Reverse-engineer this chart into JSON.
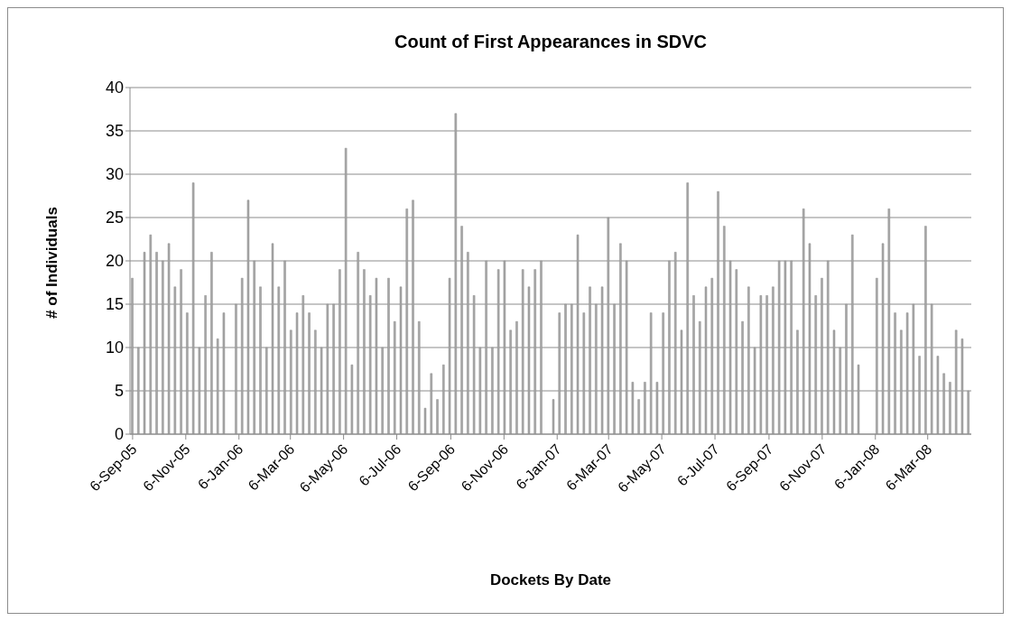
{
  "chart_data": {
    "type": "bar",
    "title": "Count of First Appearances in SDVC",
    "xlabel": "Dockets By Date",
    "ylabel": "# of Individuals",
    "x": [
      "2005-09-06",
      "2005-09-13",
      "2005-09-20",
      "2005-09-27",
      "2005-10-04",
      "2005-10-11",
      "2005-10-18",
      "2005-10-25",
      "2005-11-01",
      "2005-11-08",
      "2005-11-15",
      "2005-11-22",
      "2005-11-29",
      "2005-12-06",
      "2005-12-13",
      "2005-12-20",
      "2006-01-03",
      "2006-01-10",
      "2006-01-17",
      "2006-01-24",
      "2006-01-31",
      "2006-02-07",
      "2006-02-14",
      "2006-02-21",
      "2006-02-28",
      "2006-03-07",
      "2006-03-14",
      "2006-03-21",
      "2006-03-28",
      "2006-04-04",
      "2006-04-11",
      "2006-04-18",
      "2006-04-25",
      "2006-05-02",
      "2006-05-09",
      "2006-05-16",
      "2006-05-23",
      "2006-05-30",
      "2006-06-06",
      "2006-06-13",
      "2006-06-20",
      "2006-06-27",
      "2006-07-04",
      "2006-07-11",
      "2006-07-18",
      "2006-07-25",
      "2006-08-01",
      "2006-08-08",
      "2006-08-15",
      "2006-08-22",
      "2006-08-29",
      "2006-09-05",
      "2006-09-12",
      "2006-09-19",
      "2006-09-26",
      "2006-10-03",
      "2006-10-10",
      "2006-10-17",
      "2006-10-24",
      "2006-10-31",
      "2006-11-07",
      "2006-11-14",
      "2006-11-21",
      "2006-11-28",
      "2006-12-05",
      "2006-12-12",
      "2006-12-19",
      "2007-01-02",
      "2007-01-09",
      "2007-01-16",
      "2007-01-23",
      "2007-01-30",
      "2007-02-06",
      "2007-02-13",
      "2007-02-20",
      "2007-02-27",
      "2007-03-06",
      "2007-03-13",
      "2007-03-20",
      "2007-03-27",
      "2007-04-03",
      "2007-04-10",
      "2007-04-17",
      "2007-04-24",
      "2007-05-01",
      "2007-05-08",
      "2007-05-15",
      "2007-05-22",
      "2007-05-29",
      "2007-06-05",
      "2007-06-12",
      "2007-06-19",
      "2007-06-26",
      "2007-07-03",
      "2007-07-10",
      "2007-07-17",
      "2007-07-24",
      "2007-07-31",
      "2007-08-07",
      "2007-08-14",
      "2007-08-21",
      "2007-08-28",
      "2007-09-04",
      "2007-09-11",
      "2007-09-18",
      "2007-09-25",
      "2007-10-02",
      "2007-10-09",
      "2007-10-16",
      "2007-10-23",
      "2007-10-30",
      "2007-11-06",
      "2007-11-13",
      "2007-11-20",
      "2007-11-27",
      "2007-12-04",
      "2007-12-11",
      "2007-12-18",
      "2008-01-08",
      "2008-01-15",
      "2008-01-22",
      "2008-01-29",
      "2008-02-05",
      "2008-02-12",
      "2008-02-19",
      "2008-02-26",
      "2008-03-04",
      "2008-03-11",
      "2008-03-18",
      "2008-03-25",
      "2008-04-01",
      "2008-04-08",
      "2008-04-15",
      "2008-04-22"
    ],
    "values": [
      18,
      10,
      21,
      23,
      21,
      20,
      22,
      17,
      19,
      14,
      29,
      10,
      16,
      21,
      11,
      14,
      15,
      18,
      27,
      20,
      17,
      10,
      22,
      17,
      20,
      12,
      14,
      16,
      14,
      12,
      10,
      15,
      15,
      19,
      33,
      8,
      21,
      19,
      16,
      18,
      10,
      18,
      13,
      17,
      26,
      27,
      13,
      3,
      7,
      4,
      8,
      18,
      37,
      24,
      21,
      16,
      10,
      20,
      10,
      19,
      20,
      12,
      13,
      19,
      17,
      19,
      20,
      4,
      14,
      15,
      15,
      23,
      14,
      17,
      15,
      17,
      25,
      15,
      22,
      20,
      6,
      4,
      6,
      14,
      6,
      14,
      20,
      21,
      12,
      29,
      16,
      13,
      17,
      18,
      28,
      24,
      20,
      19,
      13,
      17,
      10,
      16,
      16,
      17,
      20,
      20,
      20,
      12,
      26,
      22,
      16,
      18,
      20,
      12,
      10,
      15,
      23,
      8,
      18,
      22,
      26,
      14,
      12,
      14,
      15,
      9,
      24,
      15,
      9,
      7,
      6,
      12,
      11,
      5
    ],
    "color": "#a6a6a6",
    "xlim": [
      "2005-09-03",
      "2008-04-25"
    ],
    "xticks": [
      {
        "value": "2005-09-06",
        "label": "6-Sep-05"
      },
      {
        "value": "2005-11-06",
        "label": "6-Nov-05"
      },
      {
        "value": "2006-01-06",
        "label": "6-Jan-06"
      },
      {
        "value": "2006-03-06",
        "label": "6-Mar-06"
      },
      {
        "value": "2006-05-06",
        "label": "6-May-06"
      },
      {
        "value": "2006-07-06",
        "label": "6-Jul-06"
      },
      {
        "value": "2006-09-06",
        "label": "6-Sep-06"
      },
      {
        "value": "2006-11-06",
        "label": "6-Nov-06"
      },
      {
        "value": "2007-01-06",
        "label": "6-Jan-07"
      },
      {
        "value": "2007-03-06",
        "label": "6-Mar-07"
      },
      {
        "value": "2007-05-06",
        "label": "6-May-07"
      },
      {
        "value": "2007-07-06",
        "label": "6-Jul-07"
      },
      {
        "value": "2007-09-06",
        "label": "6-Sep-07"
      },
      {
        "value": "2007-11-06",
        "label": "6-Nov-07"
      },
      {
        "value": "2008-01-06",
        "label": "6-Jan-08"
      },
      {
        "value": "2008-03-06",
        "label": "6-Mar-08"
      }
    ],
    "ylim": [
      0,
      40
    ],
    "yticks": [
      0,
      5,
      10,
      15,
      20,
      25,
      30,
      35,
      40
    ],
    "grid": "y"
  }
}
